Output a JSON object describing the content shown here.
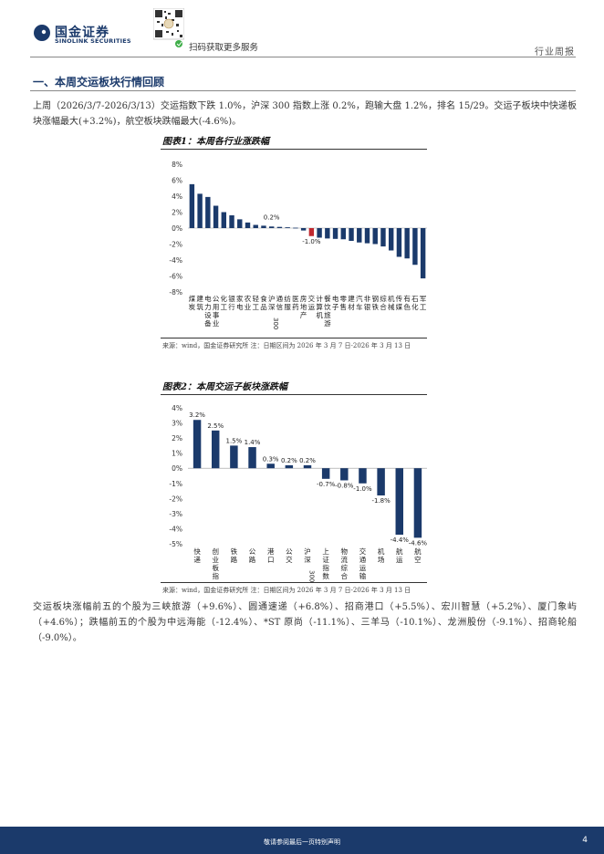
{
  "header": {
    "logo_cn": "国金证券",
    "logo_en": "SINOLINK SECURITIES",
    "qr_caption": "扫码获取更多服务",
    "doc_type": "行业周报"
  },
  "section": {
    "title": "一、本周交运板块行情回顾",
    "para1": "上周（2026/3/7-2026/3/13）交运指数下跌 1.0%，沪深 300 指数上涨 0.2%，跑输大盘 1.2%，排名 15/29。交运子板块中快递板块涨幅最大(+3.2%)，航空板块跌幅最大(-4.6%)。",
    "para2": "交运板块涨幅前五的个股为三峡旅游（+9.6%）、圆通速递（+6.8%）、招商港口（+5.5%）、宏川智慧（+5.2%）、厦门象屿（+4.6%）；跌幅前五的个股为中远海能（-12.4%）、*ST 原尚（-11.1%）、三羊马（-10.1%）、龙洲股份（-9.1%）、招商轮船（-9.0%）。"
  },
  "figure1": {
    "title": "图表1：本周各行业涨跌幅",
    "source": "来源：wind，国金证券研究所    注：日期区间为 2026 年 3 月 7 日-2026 年 3 月 13 日"
  },
  "figure2": {
    "title": "图表2：本周交运子板块涨跌幅",
    "source": "来源：wind，国金证券研究所    注：日期区间为 2026 年 3 月 7 日-2026 年 3 月 13 日"
  },
  "footer": {
    "disclaimer": "敬请参阅最后一页特别声明",
    "page": "4"
  },
  "colors": {
    "navy": "#1b3a6b",
    "red": "#c0282e",
    "bar": "#1b3a6b"
  },
  "chart_data": [
    {
      "type": "bar",
      "title": "图表1：本周各行业涨跌幅",
      "categories": [
        "煤炭",
        "建筑",
        "电力设备",
        "公用事业",
        "化工",
        "银行",
        "家电",
        "农业",
        "轻工",
        "食品",
        "沪深300",
        "通信",
        "纺服",
        "医药",
        "房地产",
        "交运",
        "计算机",
        "餐饮旅游",
        "电子",
        "零售",
        "建材",
        "汽车",
        "非银",
        "钢铁",
        "综合",
        "机械",
        "传媒",
        "有色",
        "石化",
        "军工"
      ],
      "values": [
        5.5,
        4.3,
        3.9,
        2.8,
        2.0,
        1.6,
        1.1,
        0.7,
        0.4,
        0.3,
        0.2,
        0.15,
        0.1,
        0.05,
        -0.3,
        -1.0,
        -1.2,
        -1.3,
        -1.35,
        -1.4,
        -1.6,
        -1.8,
        -1.9,
        -2.0,
        -2.3,
        -2.8,
        -3.6,
        -3.8,
        -4.6,
        -6.3
      ],
      "highlight": {
        "沪深300": "0.2%",
        "交运": "-1.0%"
      },
      "ylim": [
        -8,
        8
      ],
      "yticks": [
        "8%",
        "6%",
        "4%",
        "2%",
        "0%",
        "-2%",
        "-4%",
        "-6%",
        "-8%"
      ],
      "xlabel": "",
      "ylabel": ""
    },
    {
      "type": "bar",
      "title": "图表2：本周交运子板块涨跌幅",
      "categories": [
        "快递",
        "创业板指",
        "铁路",
        "公路",
        "港口",
        "公交",
        "沪深300",
        "上证指数",
        "物流综合",
        "交通运输",
        "机场",
        "航运",
        "航空"
      ],
      "values": [
        3.2,
        2.5,
        1.5,
        1.4,
        0.3,
        0.2,
        0.2,
        -0.7,
        -0.8,
        -1.0,
        -1.8,
        -4.4,
        -4.6
      ],
      "labels": [
        "3.2%",
        "2.5%",
        "1.5%",
        "1.4%",
        "0.3%",
        "0.2%",
        "0.2%",
        "-0.7%",
        "-0.8%",
        "-1.0%",
        "-1.8%",
        "-4.4%",
        "-4.6%"
      ],
      "ylim": [
        -5,
        4
      ],
      "yticks": [
        "4%",
        "3%",
        "2%",
        "1%",
        "0%",
        "-1%",
        "-2%",
        "-3%",
        "-4%",
        "-5%"
      ],
      "xlabel": "",
      "ylabel": ""
    }
  ]
}
